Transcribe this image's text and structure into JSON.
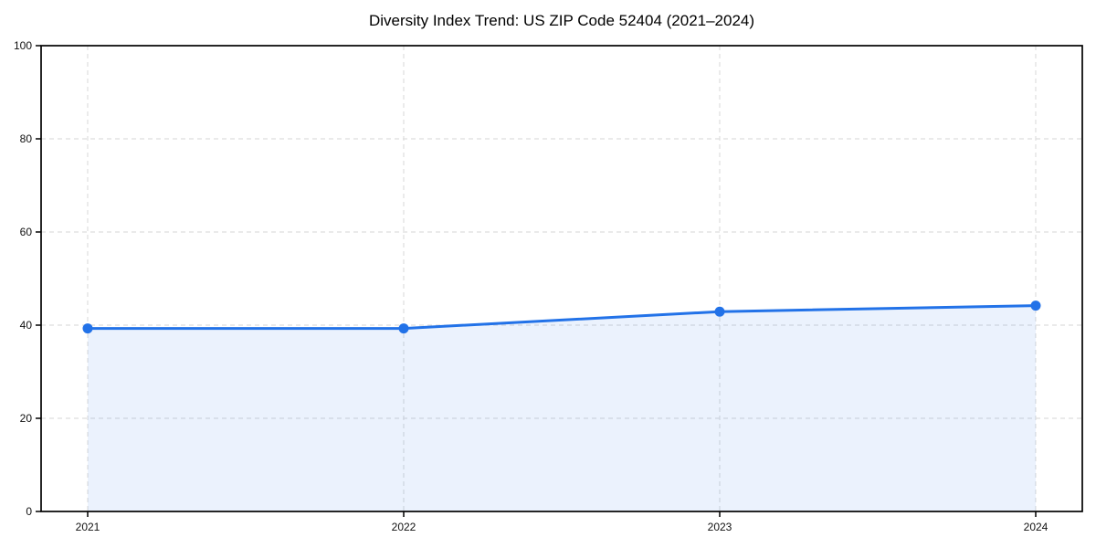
{
  "chart_data": {
    "type": "line",
    "title": "Diversity Index Trend: US ZIP Code 52404 (2021–2024)",
    "x": [
      "2021",
      "2022",
      "2023",
      "2024"
    ],
    "series": [
      {
        "name": "Diversity Index",
        "values": [
          39.3,
          39.3,
          42.9,
          44.2
        ]
      }
    ],
    "xlabel": "",
    "ylabel": "",
    "ylim": [
      0,
      100
    ],
    "yticks": [
      0,
      20,
      40,
      60,
      80,
      100
    ],
    "grid": true,
    "legend": false,
    "style": {
      "line_color": "#2272e8",
      "marker_color": "#2272e8",
      "area_fill_color": "#2272e8",
      "area_fill_opacity": 0.09,
      "grid_color": "#dedede",
      "spine_color": "#000000",
      "tick_color": "#000000",
      "background_color": "#ffffff"
    }
  }
}
